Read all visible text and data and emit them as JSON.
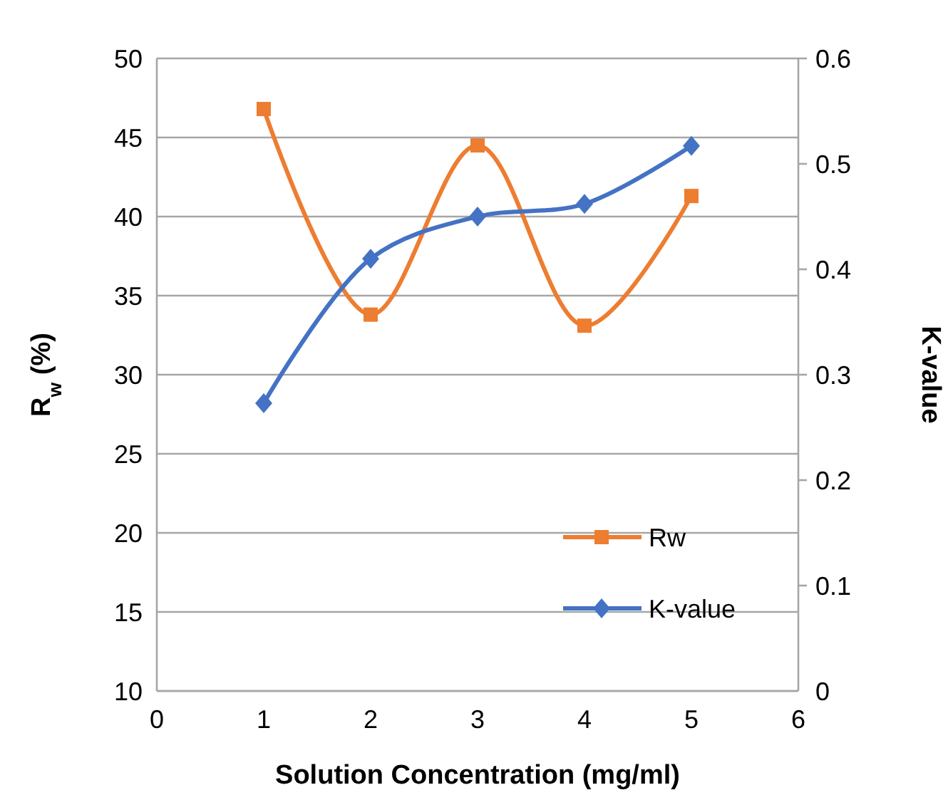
{
  "chart_data": {
    "type": "line",
    "xlabel": "Solution Concentration (mg/ml)",
    "ylabel": "R$_{w}$ (%)",
    "y2label": "K-value",
    "x": [
      1,
      2,
      3,
      4,
      5
    ],
    "xlim": [
      0,
      6
    ],
    "xticks": [
      0,
      1,
      2,
      3,
      4,
      5,
      6
    ],
    "ylim": [
      10,
      50
    ],
    "yticks": [
      10,
      15,
      20,
      25,
      30,
      35,
      40,
      45,
      50
    ],
    "y2lim": [
      0,
      0.6
    ],
    "y2ticks": [
      0,
      0.1,
      0.2,
      0.3,
      0.4,
      0.5,
      0.6
    ],
    "grid": "y",
    "legend": "bottom right",
    "line_style": "solid",
    "series": [
      {
        "name": "Rw",
        "color": "#ed7d31",
        "marker": "square",
        "values": [
          46.8,
          33.8,
          44.5,
          33.1,
          41.3
        ]
      },
      {
        "name": "K-value",
        "color": "#4472c4",
        "marker": "diamond",
        "axis": "y2",
        "values": [
          0.273,
          0.41,
          0.45,
          0.462,
          0.517
        ]
      }
    ]
  }
}
